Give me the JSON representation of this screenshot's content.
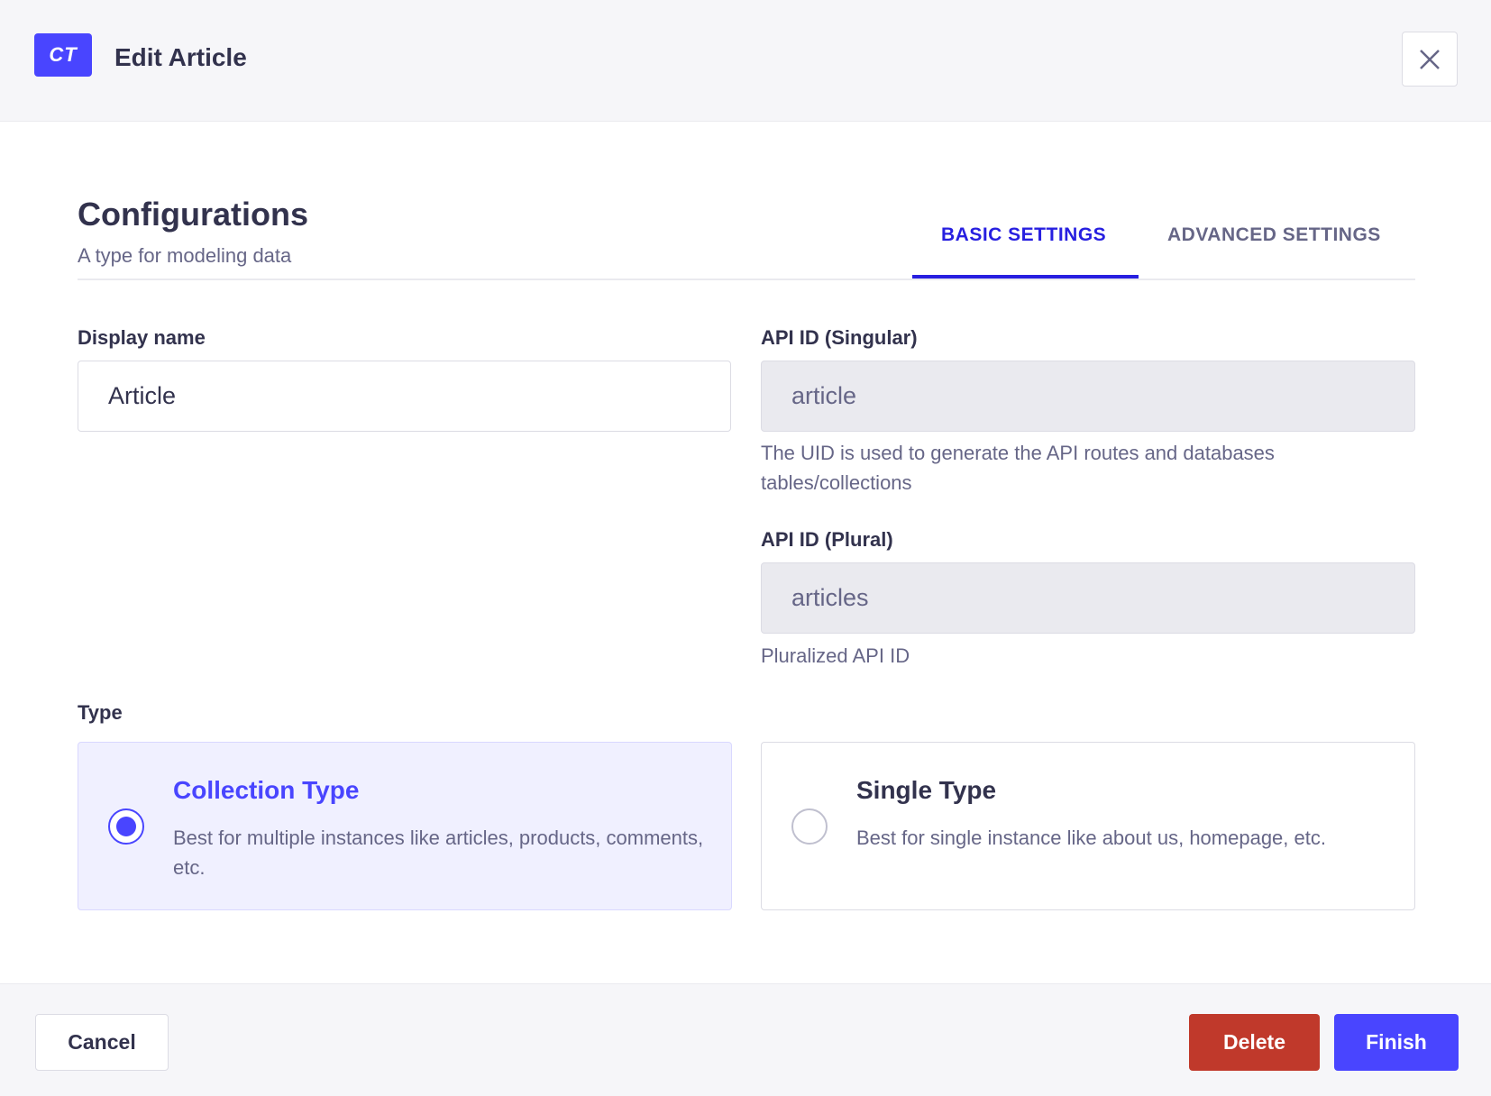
{
  "header": {
    "logo": "CT",
    "title": "Edit Article",
    "close_icon": "close-icon"
  },
  "config": {
    "title": "Configurations",
    "subtitle": "A type for modeling data"
  },
  "tabs": [
    {
      "label": "BASIC SETTINGS",
      "active": true
    },
    {
      "label": "ADVANCED SETTINGS",
      "active": false
    }
  ],
  "form": {
    "display_name": {
      "label": "Display name",
      "value": "Article"
    },
    "api_singular": {
      "label": "API ID (Singular)",
      "value": "article",
      "help": "The UID is used to generate the API routes and databases tables/collections"
    },
    "api_plural": {
      "label": "API ID (Plural)",
      "value": "articles",
      "help": "Pluralized API ID"
    },
    "type": {
      "label": "Type",
      "options": [
        {
          "title": "Collection Type",
          "description": "Best for multiple instances like articles, products, comments, etc.",
          "selected": true
        },
        {
          "title": "Single Type",
          "description": "Best for single instance like about us, homepage, etc.",
          "selected": false
        }
      ]
    }
  },
  "footer": {
    "cancel": "Cancel",
    "delete": "Delete",
    "finish": "Finish"
  },
  "colors": {
    "primary": "#4945ff",
    "danger": "#c0392b",
    "tab_active": "#271fe0"
  }
}
